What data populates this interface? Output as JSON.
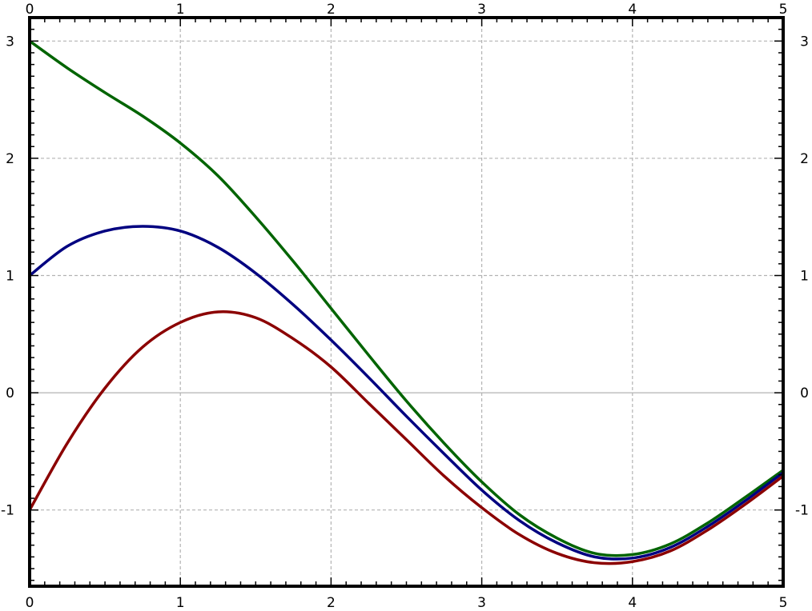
{
  "chart_data": {
    "type": "line",
    "title": "",
    "xlabel": "",
    "ylabel": "",
    "xlim": [
      0,
      5
    ],
    "ylim": [
      -1.65,
      3.2
    ],
    "x_ticks": [
      0,
      1,
      2,
      3,
      4,
      5
    ],
    "x_tick_labels": [
      "0",
      "1",
      "2",
      "3",
      "4",
      "5"
    ],
    "y_ticks": [
      -1,
      0,
      1,
      2,
      3
    ],
    "y_tick_labels": [
      "-1",
      "0",
      "1",
      "2",
      "3"
    ],
    "grid": true,
    "x": [
      0,
      0.25,
      0.5,
      0.75,
      1,
      1.25,
      1.5,
      1.75,
      2,
      2.25,
      2.5,
      2.75,
      3,
      3.25,
      3.5,
      3.75,
      4,
      4.25,
      4.5,
      4.75,
      5
    ],
    "series": [
      {
        "name": "green",
        "color": "#006400",
        "values": [
          3.0,
          2.77,
          2.56,
          2.36,
          2.13,
          1.85,
          1.5,
          1.12,
          0.72,
          0.32,
          -0.07,
          -0.43,
          -0.76,
          -1.04,
          -1.24,
          -1.37,
          -1.38,
          -1.29,
          -1.11,
          -0.89,
          -0.66
        ]
      },
      {
        "name": "blue",
        "color": "#000080",
        "values": [
          1.0,
          1.25,
          1.38,
          1.42,
          1.38,
          1.24,
          1.02,
          0.75,
          0.45,
          0.13,
          -0.2,
          -0.52,
          -0.83,
          -1.09,
          -1.28,
          -1.4,
          -1.41,
          -1.32,
          -1.14,
          -0.92,
          -0.68
        ]
      },
      {
        "name": "red",
        "color": "#8b0000",
        "values": [
          -1.0,
          -0.43,
          0.04,
          0.39,
          0.6,
          0.69,
          0.64,
          0.46,
          0.22,
          -0.09,
          -0.4,
          -0.71,
          -0.98,
          -1.21,
          -1.37,
          -1.45,
          -1.44,
          -1.35,
          -1.17,
          -0.95,
          -0.71
        ]
      }
    ]
  }
}
